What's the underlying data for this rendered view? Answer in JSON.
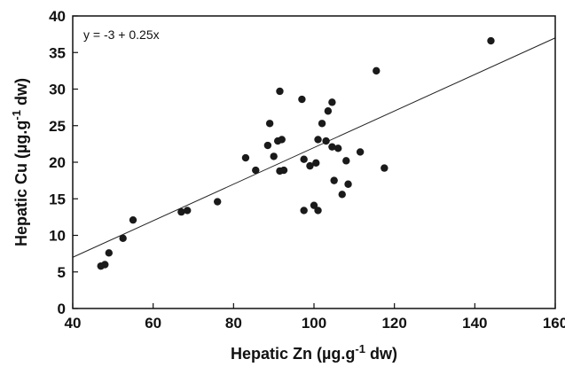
{
  "chart_data": {
    "type": "scatter",
    "xlabel": {
      "main": "Hepatic Zn (µg.g",
      "sup": "-1",
      "tail": " dw)"
    },
    "ylabel": {
      "main": "Hepatic Cu (µg.g",
      "sup": "-1",
      "tail": " dw)"
    },
    "xlim": [
      40,
      160
    ],
    "ylim": [
      0,
      40
    ],
    "xticks": [
      "40",
      "60",
      "80",
      "100",
      "120",
      "140",
      "160"
    ],
    "yticks": [
      "0",
      "5",
      "10",
      "15",
      "20",
      "25",
      "30",
      "35",
      "40"
    ],
    "grid": false,
    "legend": "none",
    "annotation": "y = -3 + 0.25x",
    "fit": {
      "intercept": -3,
      "slope": 0.25,
      "x_range": [
        40,
        160
      ]
    },
    "marker_color": "#1a1a1a",
    "series": [
      {
        "points": [
          [
            47,
            5.8
          ],
          [
            48,
            6.0
          ],
          [
            49,
            7.6
          ],
          [
            52.5,
            9.6
          ],
          [
            55,
            12.1
          ],
          [
            67,
            13.2
          ],
          [
            68.5,
            13.4
          ],
          [
            76,
            14.6
          ],
          [
            83,
            20.6
          ],
          [
            85.5,
            18.9
          ],
          [
            88.5,
            22.3
          ],
          [
            89,
            25.3
          ],
          [
            90,
            20.8
          ],
          [
            91,
            22.9
          ],
          [
            91.5,
            29.7
          ],
          [
            91.5,
            18.8
          ],
          [
            92,
            23.1
          ],
          [
            92.5,
            18.9
          ],
          [
            97,
            28.6
          ],
          [
            97.5,
            20.4
          ],
          [
            97.5,
            13.4
          ],
          [
            99,
            19.5
          ],
          [
            100,
            14.1
          ],
          [
            100.5,
            19.9
          ],
          [
            101,
            13.4
          ],
          [
            101,
            23.1
          ],
          [
            102,
            25.3
          ],
          [
            103,
            22.9
          ],
          [
            103.5,
            27.0
          ],
          [
            104.5,
            28.2
          ],
          [
            104.5,
            22.1
          ],
          [
            105,
            17.5
          ],
          [
            106,
            21.9
          ],
          [
            107,
            15.6
          ],
          [
            108,
            20.2
          ],
          [
            108.5,
            17.0
          ],
          [
            111.5,
            21.4
          ],
          [
            115.5,
            32.5
          ],
          [
            117.5,
            19.2
          ],
          [
            144,
            36.6
          ]
        ]
      }
    ]
  }
}
